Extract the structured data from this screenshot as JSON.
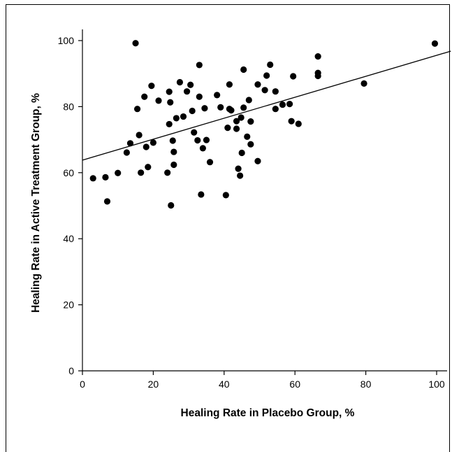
{
  "chart_data": {
    "type": "scatter",
    "xlabel": "Healing Rate in Placebo Group, %",
    "ylabel": "Healing Rate in Active Treatment Group, %",
    "xlim": [
      0,
      100
    ],
    "ylim": [
      0,
      100
    ],
    "x_ticks": [
      "0",
      "20",
      "40",
      "60",
      "80",
      "100"
    ],
    "y_ticks": [
      "0",
      "20",
      "40",
      "60",
      "80",
      "100"
    ],
    "grid": false,
    "colors": {
      "points": "#000000",
      "line": "#000000"
    },
    "regression_line": {
      "x": [
        0,
        104
      ],
      "y": [
        63.8,
        96.8
      ]
    },
    "points": [
      {
        "x": 3,
        "y": 58.3
      },
      {
        "x": 6.5,
        "y": 58.6
      },
      {
        "x": 7,
        "y": 51.3
      },
      {
        "x": 10,
        "y": 59.9
      },
      {
        "x": 12.5,
        "y": 66.1
      },
      {
        "x": 13.5,
        "y": 68.9
      },
      {
        "x": 15,
        "y": 99.2
      },
      {
        "x": 15.5,
        "y": 79.3
      },
      {
        "x": 16,
        "y": 71.4
      },
      {
        "x": 16.5,
        "y": 60.0
      },
      {
        "x": 17.5,
        "y": 83.0
      },
      {
        "x": 18,
        "y": 67.8
      },
      {
        "x": 18.5,
        "y": 61.7
      },
      {
        "x": 19.5,
        "y": 86.3
      },
      {
        "x": 20,
        "y": 69.1
      },
      {
        "x": 21.5,
        "y": 81.8
      },
      {
        "x": 24,
        "y": 60.0
      },
      {
        "x": 24.5,
        "y": 74.7
      },
      {
        "x": 24.5,
        "y": 84.5
      },
      {
        "x": 24.8,
        "y": 81.3
      },
      {
        "x": 25,
        "y": 50.1
      },
      {
        "x": 25.5,
        "y": 69.7
      },
      {
        "x": 25.8,
        "y": 66.3
      },
      {
        "x": 25.8,
        "y": 62.4
      },
      {
        "x": 26.5,
        "y": 76.5
      },
      {
        "x": 27.5,
        "y": 87.4
      },
      {
        "x": 28.5,
        "y": 77.0
      },
      {
        "x": 29.5,
        "y": 84.6
      },
      {
        "x": 30.5,
        "y": 86.6
      },
      {
        "x": 31,
        "y": 78.7
      },
      {
        "x": 31.5,
        "y": 72.2
      },
      {
        "x": 32.5,
        "y": 69.8
      },
      {
        "x": 33,
        "y": 92.6
      },
      {
        "x": 33,
        "y": 83.0
      },
      {
        "x": 33.5,
        "y": 53.4
      },
      {
        "x": 34,
        "y": 67.4
      },
      {
        "x": 34.5,
        "y": 79.5
      },
      {
        "x": 35,
        "y": 69.9
      },
      {
        "x": 36,
        "y": 63.2
      },
      {
        "x": 38,
        "y": 83.5
      },
      {
        "x": 39,
        "y": 79.8
      },
      {
        "x": 40.5,
        "y": 53.2
      },
      {
        "x": 41,
        "y": 73.6
      },
      {
        "x": 41.5,
        "y": 86.7
      },
      {
        "x": 41.5,
        "y": 79.3
      },
      {
        "x": 42,
        "y": 78.9
      },
      {
        "x": 43.5,
        "y": 75.6
      },
      {
        "x": 43.5,
        "y": 73.3
      },
      {
        "x": 44,
        "y": 61.2
      },
      {
        "x": 44.5,
        "y": 59.1
      },
      {
        "x": 44.8,
        "y": 76.7
      },
      {
        "x": 45,
        "y": 66.0
      },
      {
        "x": 45.5,
        "y": 91.2
      },
      {
        "x": 45.5,
        "y": 79.7
      },
      {
        "x": 46.5,
        "y": 70.9
      },
      {
        "x": 47,
        "y": 82.0
      },
      {
        "x": 47.5,
        "y": 68.6
      },
      {
        "x": 47.5,
        "y": 75.5
      },
      {
        "x": 49.5,
        "y": 86.7
      },
      {
        "x": 49.5,
        "y": 63.5
      },
      {
        "x": 51.5,
        "y": 85.0
      },
      {
        "x": 52,
        "y": 89.4
      },
      {
        "x": 53,
        "y": 92.7
      },
      {
        "x": 54.5,
        "y": 84.6
      },
      {
        "x": 54.5,
        "y": 79.3
      },
      {
        "x": 56.5,
        "y": 80.6
      },
      {
        "x": 58.5,
        "y": 80.8
      },
      {
        "x": 59,
        "y": 75.6
      },
      {
        "x": 59.5,
        "y": 89.2
      },
      {
        "x": 61,
        "y": 74.8
      },
      {
        "x": 66.5,
        "y": 95.2
      },
      {
        "x": 66.5,
        "y": 90.2
      },
      {
        "x": 66.5,
        "y": 89.3
      },
      {
        "x": 79.5,
        "y": 87.0
      },
      {
        "x": 99.5,
        "y": 99.1
      }
    ]
  }
}
